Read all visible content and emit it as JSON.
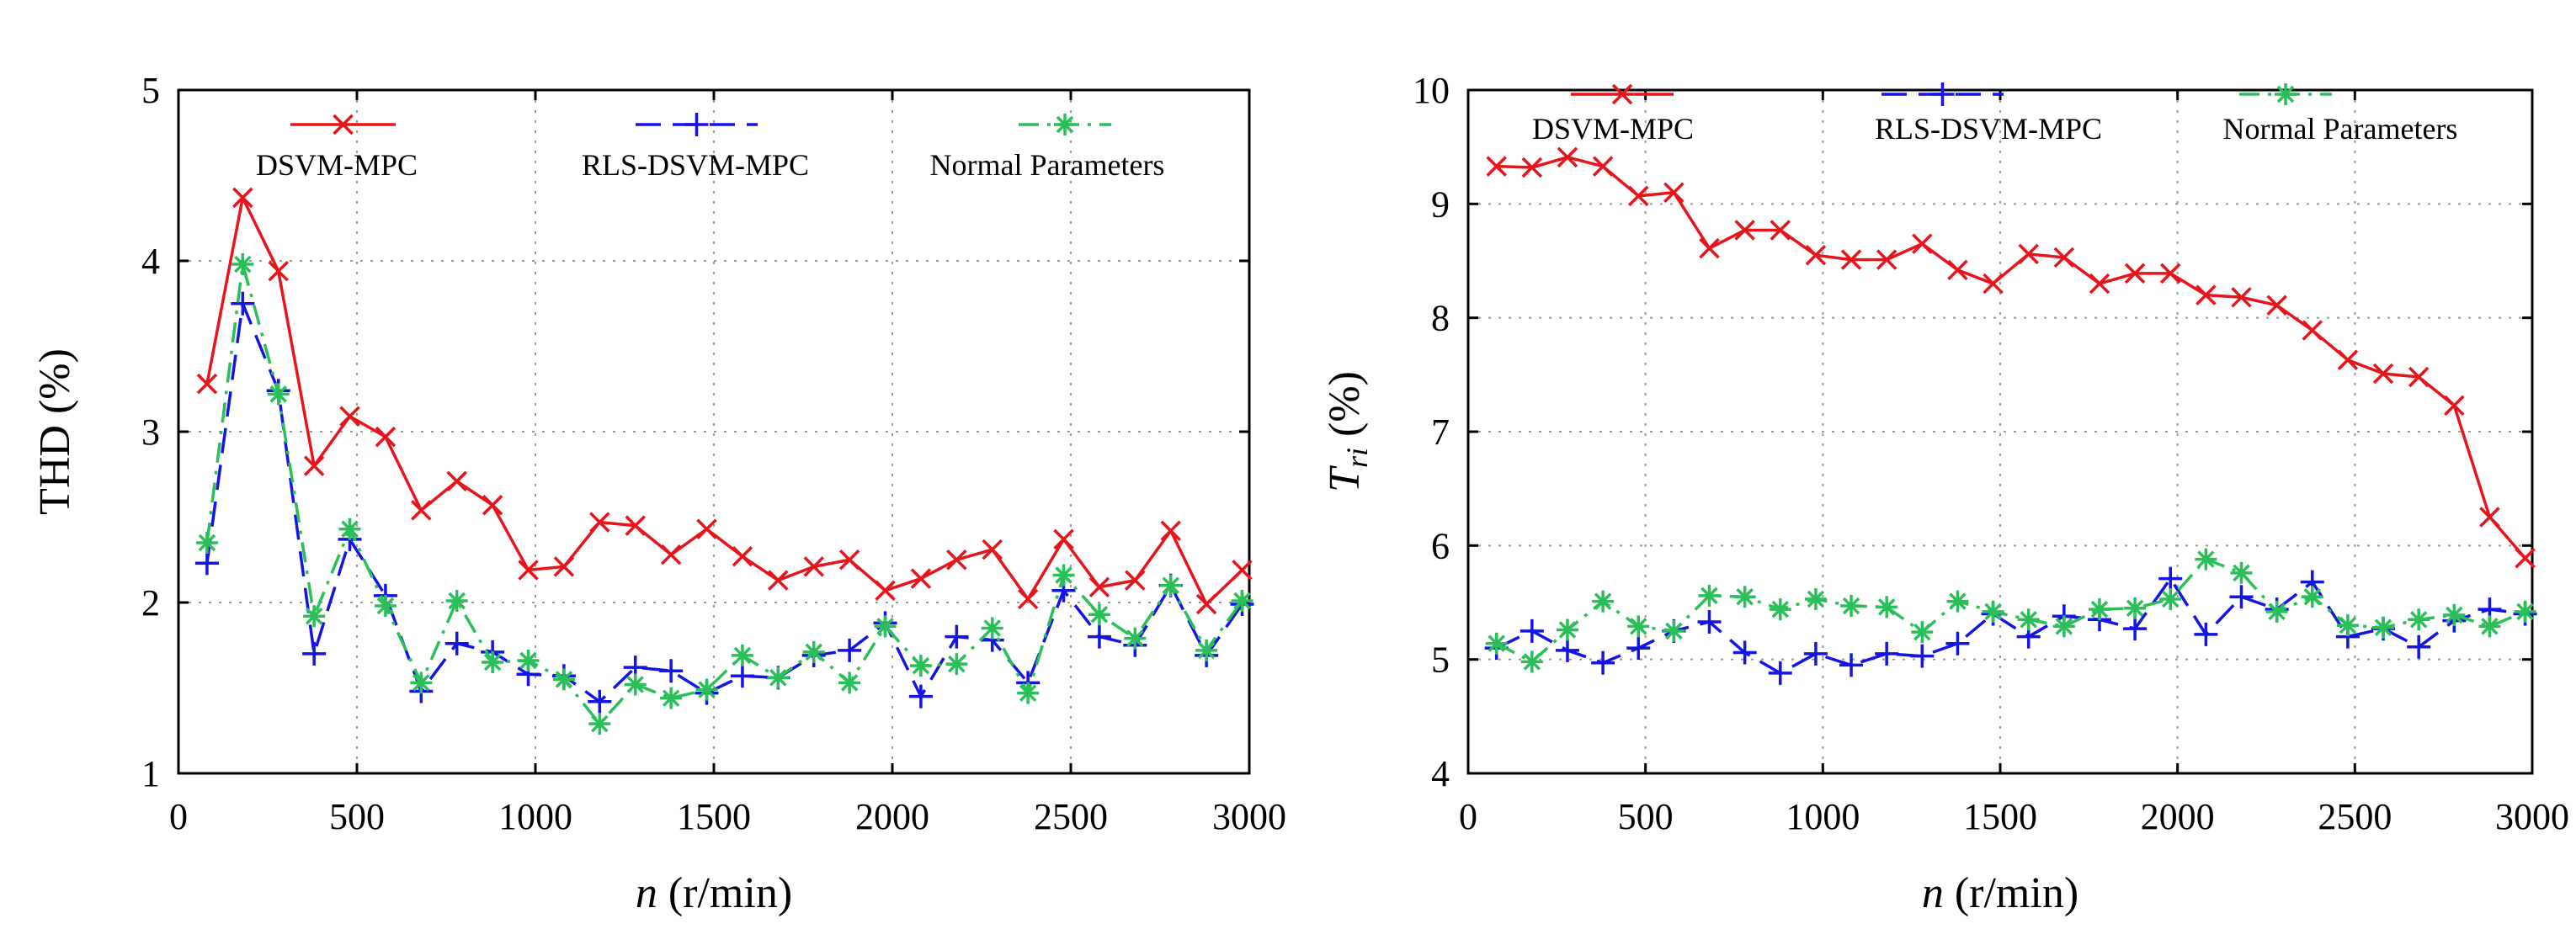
{
  "chart_data": [
    {
      "type": "line",
      "id": "thd",
      "xlabel_var": "n",
      "xlabel_unit": " (r/min)",
      "ylabel": "THD (%)",
      "xlim": [
        0,
        3000
      ],
      "ylim": [
        1,
        5
      ],
      "xticks": [
        0,
        500,
        1000,
        1500,
        2000,
        2500,
        3000
      ],
      "yticks": [
        1,
        2,
        3,
        4,
        5
      ],
      "grid": true,
      "x": [
        80,
        180,
        280,
        380,
        480,
        580,
        680,
        780,
        880,
        980,
        1080,
        1180,
        1280,
        1380,
        1480,
        1580,
        1680,
        1780,
        1880,
        1980,
        2080,
        2180,
        2280,
        2380,
        2480,
        2580,
        2680,
        2780,
        2880,
        2980
      ],
      "series": [
        {
          "name": "DSVM-MPC",
          "color": "#e8141c",
          "marker": "x",
          "dash": "solid",
          "values": [
            3.28,
            4.37,
            3.94,
            2.8,
            3.09,
            2.97,
            2.54,
            2.71,
            2.57,
            2.19,
            2.21,
            2.47,
            2.45,
            2.28,
            2.43,
            2.27,
            2.13,
            2.21,
            2.25,
            2.07,
            2.14,
            2.25,
            2.31,
            2.02,
            2.37,
            2.09,
            2.13,
            2.42,
            1.99,
            2.19
          ]
        },
        {
          "name": "RLS-DSVM-MPC",
          "color": "#1414e6",
          "marker": "plus",
          "dash": "dash",
          "values": [
            2.23,
            3.75,
            3.24,
            1.7,
            2.37,
            2.04,
            1.48,
            1.76,
            1.71,
            1.58,
            1.57,
            1.42,
            1.62,
            1.6,
            1.47,
            1.57,
            1.56,
            1.69,
            1.72,
            1.88,
            1.45,
            1.8,
            1.78,
            1.53,
            2.07,
            1.8,
            1.75,
            2.1,
            1.69,
            1.99
          ]
        },
        {
          "name": "Normal Parameters",
          "color": "#2bbf5a",
          "marker": "star",
          "dash": "dashdot",
          "values": [
            2.35,
            3.98,
            3.22,
            1.92,
            2.43,
            1.98,
            1.53,
            2.01,
            1.65,
            1.66,
            1.55,
            1.29,
            1.52,
            1.44,
            1.49,
            1.69,
            1.56,
            1.71,
            1.53,
            1.86,
            1.63,
            1.64,
            1.85,
            1.47,
            2.16,
            1.93,
            1.79,
            2.1,
            1.72,
            2.01
          ]
        }
      ]
    },
    {
      "type": "line",
      "id": "tri",
      "xlabel_var": "n",
      "xlabel_unit": " (r/min)",
      "ylabel_var": "T",
      "ylabel_sub": "ri",
      "ylabel_unit": " (%)",
      "xlim": [
        0,
        3000
      ],
      "ylim": [
        4,
        10
      ],
      "xticks": [
        0,
        500,
        1000,
        1500,
        2000,
        2500,
        3000
      ],
      "yticks": [
        4,
        5,
        6,
        7,
        8,
        9,
        10
      ],
      "grid": true,
      "x": [
        80,
        180,
        280,
        380,
        480,
        580,
        680,
        780,
        880,
        980,
        1080,
        1180,
        1280,
        1380,
        1480,
        1580,
        1680,
        1780,
        1880,
        1980,
        2080,
        2180,
        2280,
        2380,
        2480,
        2580,
        2680,
        2780,
        2880,
        2980
      ],
      "series": [
        {
          "name": "DSVM-MPC",
          "color": "#e8141c",
          "marker": "x",
          "dash": "solid",
          "values": [
            9.33,
            9.32,
            9.41,
            9.33,
            9.07,
            9.1,
            8.61,
            8.77,
            8.77,
            8.55,
            8.51,
            8.51,
            8.65,
            8.42,
            8.3,
            8.56,
            8.53,
            8.3,
            8.39,
            8.39,
            8.2,
            8.18,
            8.11,
            7.89,
            7.63,
            7.51,
            7.48,
            7.23,
            6.25,
            5.89
          ]
        },
        {
          "name": "RLS-DSVM-MPC",
          "color": "#1414e6",
          "marker": "plus",
          "dash": "dash",
          "values": [
            5.1,
            5.25,
            5.08,
            4.97,
            5.1,
            5.25,
            5.33,
            5.06,
            4.88,
            5.05,
            4.95,
            5.05,
            5.03,
            5.14,
            5.4,
            5.2,
            5.38,
            5.35,
            5.27,
            5.71,
            5.22,
            5.55,
            5.44,
            5.68,
            5.2,
            5.27,
            5.11,
            5.34,
            5.44,
            5.4
          ]
        },
        {
          "name": "Normal Parameters",
          "color": "#2bbf5a",
          "marker": "star",
          "dash": "dashdot",
          "values": [
            5.14,
            4.98,
            5.26,
            5.51,
            5.29,
            5.25,
            5.56,
            5.55,
            5.44,
            5.53,
            5.47,
            5.46,
            5.24,
            5.51,
            5.42,
            5.35,
            5.29,
            5.44,
            5.45,
            5.53,
            5.88,
            5.76,
            5.42,
            5.55,
            5.3,
            5.28,
            5.35,
            5.39,
            5.29,
            5.42
          ]
        }
      ]
    }
  ]
}
